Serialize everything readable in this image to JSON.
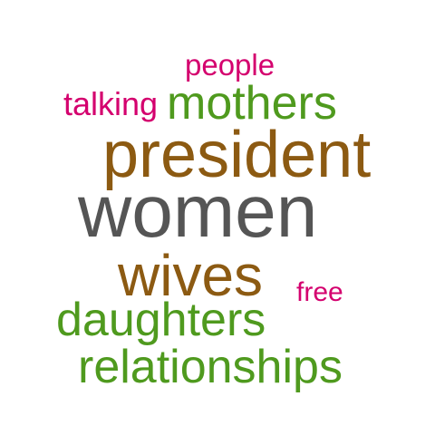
{
  "colors": {
    "pink": "#d4006e",
    "green": "#4f9a1e",
    "brown": "#8c5a12",
    "gray": "#555555",
    "background": "#ffffff"
  },
  "words": {
    "people": "people",
    "talking": "talking",
    "mothers": "mothers",
    "president": "president",
    "women": "women",
    "wives": "wives",
    "free": "free",
    "daughters": "daughters",
    "relationships": "relationships"
  },
  "word_colors": {
    "people": "pink",
    "talking": "pink",
    "mothers": "green",
    "president": "brown",
    "women": "gray",
    "wives": "brown",
    "free": "pink",
    "daughters": "green",
    "relationships": "green"
  }
}
